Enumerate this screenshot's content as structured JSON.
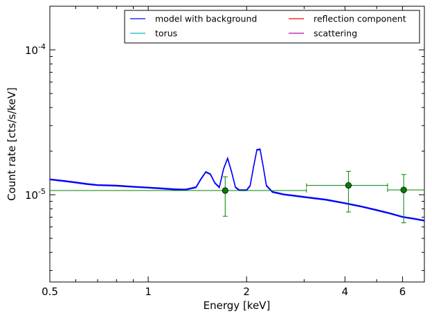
{
  "chart_data": {
    "type": "line",
    "xlabel": "Energy [keV]",
    "ylabel": "Count rate [cts/s/keV]",
    "x_scale": "log",
    "y_scale": "log",
    "xlim": [
      0.5,
      7.0
    ],
    "ylim": [
      2.5e-06,
      0.0002
    ],
    "grid": false,
    "legend_position": "top-right",
    "x_ticks": [
      {
        "value": 0.5,
        "label": "0.5"
      },
      {
        "value": 1,
        "label": "1"
      },
      {
        "value": 2,
        "label": "2"
      },
      {
        "value": 4,
        "label": "4"
      },
      {
        "value": 6,
        "label": "6"
      }
    ],
    "y_ticks": [
      {
        "value": 1e-05,
        "base": "10",
        "exp": "-5"
      },
      {
        "value": 0.0001,
        "base": "10",
        "exp": "-4"
      }
    ],
    "series": [
      {
        "name": "model with background",
        "color": "#0000ff",
        "x": [
          0.5,
          0.55,
          0.6,
          0.65,
          0.7,
          0.75,
          0.8,
          0.9,
          1.0,
          1.1,
          1.2,
          1.3,
          1.4,
          1.45,
          1.5,
          1.55,
          1.6,
          1.65,
          1.7,
          1.75,
          1.8,
          1.85,
          1.9,
          2.0,
          2.05,
          2.1,
          2.15,
          2.2,
          2.25,
          2.3,
          2.4,
          2.5,
          2.6,
          2.8,
          3.0,
          3.5,
          4.0,
          4.5,
          5.0,
          5.5,
          6.0,
          6.5,
          7.0
        ],
        "y": [
          1.27e-05,
          1.24e-05,
          1.21e-05,
          1.18e-05,
          1.16e-05,
          1.155e-05,
          1.15e-05,
          1.13e-05,
          1.115e-05,
          1.1e-05,
          1.085e-05,
          1.08e-05,
          1.12e-05,
          1.28e-05,
          1.43e-05,
          1.38e-05,
          1.2e-05,
          1.12e-05,
          1.5e-05,
          1.78e-05,
          1.43e-05,
          1.12e-05,
          1.07e-05,
          1.07e-05,
          1.15e-05,
          1.55e-05,
          2.03e-05,
          2.05e-05,
          1.55e-05,
          1.15e-05,
          1.04e-05,
          1.02e-05,
          1e-05,
          9.8e-06,
          9.6e-06,
          9.2e-06,
          8.7e-06,
          8.25e-06,
          7.8e-06,
          7.4e-06,
          7e-06,
          6.8e-06,
          6.6e-06
        ]
      },
      {
        "name": "torus",
        "color": "#00bfbf",
        "x": [],
        "y": []
      },
      {
        "name": "reflection component",
        "color": "#ff0000",
        "x": [],
        "y": []
      },
      {
        "name": "scattering",
        "color": "#bf00bf",
        "x": [],
        "y": []
      },
      {
        "name": "",
        "color": "#008000",
        "type": "errorbar",
        "points": [
          {
            "x": 1.72,
            "y": 1.07e-05,
            "xlo": 0.5,
            "xhi": 3.05,
            "ylo": 7.1e-06,
            "yhi": 1.33e-05
          },
          {
            "x": 4.1,
            "y": 1.16e-05,
            "xlo": 3.05,
            "xhi": 5.4,
            "ylo": 7.6e-06,
            "yhi": 1.45e-05
          },
          {
            "x": 6.05,
            "y": 1.08e-05,
            "xlo": 5.4,
            "xhi": 7.0,
            "ylo": 6.4e-06,
            "yhi": 1.38e-05
          }
        ]
      }
    ]
  }
}
